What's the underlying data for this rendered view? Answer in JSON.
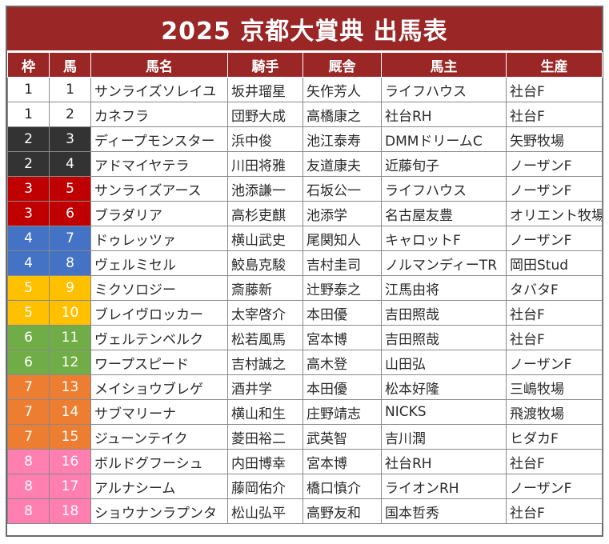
{
  "title": "2025 京都大賞典 出馬表",
  "columns": [
    "枠",
    "馬",
    "馬名",
    "騎手",
    "厩舎",
    "馬主",
    "生産"
  ],
  "frame_colors": {
    "1": {
      "bg": "#ffffff",
      "fg": "#222222"
    },
    "2": {
      "bg": "#333333",
      "fg": "#ffffff"
    },
    "3": {
      "bg": "#c00000",
      "fg": "#ffffff"
    },
    "4": {
      "bg": "#4472c4",
      "fg": "#ffffff"
    },
    "5": {
      "bg": "#ffc000",
      "fg": "#ffffff"
    },
    "6": {
      "bg": "#70ad47",
      "fg": "#ffffff"
    },
    "7": {
      "bg": "#ed7d31",
      "fg": "#ffffff"
    },
    "8": {
      "bg": "#ff7fb0",
      "fg": "#ffffff"
    }
  },
  "rows": [
    {
      "waku": "1",
      "uma": "1",
      "name": "サンライズソレイユ",
      "jockey": "坂井瑠星",
      "trainer": "矢作芳人",
      "owner": "ライフハウス",
      "breeder": "社台F"
    },
    {
      "waku": "1",
      "uma": "2",
      "name": "カネフラ",
      "jockey": "団野大成",
      "trainer": "高橋康之",
      "owner": "社台RH",
      "breeder": "社台F"
    },
    {
      "waku": "2",
      "uma": "3",
      "name": "ディープモンスター",
      "jockey": "浜中俊",
      "trainer": "池江泰寿",
      "owner": "DMMドリームC",
      "breeder": "矢野牧場"
    },
    {
      "waku": "2",
      "uma": "4",
      "name": "アドマイヤテラ",
      "jockey": "川田将雅",
      "trainer": "友道康夫",
      "owner": "近藤旬子",
      "breeder": "ノーザンF"
    },
    {
      "waku": "3",
      "uma": "5",
      "name": "サンライズアース",
      "jockey": "池添謙一",
      "trainer": "石坂公一",
      "owner": "ライフハウス",
      "breeder": "ノーザンF"
    },
    {
      "waku": "3",
      "uma": "6",
      "name": "ブラダリア",
      "jockey": "高杉吏麒",
      "trainer": "池添学",
      "owner": "名古屋友豊",
      "breeder": "オリエント牧場"
    },
    {
      "waku": "4",
      "uma": "7",
      "name": "ドゥレッツァ",
      "jockey": "横山武史",
      "trainer": "尾関知人",
      "owner": "キャロットF",
      "breeder": "ノーザンF"
    },
    {
      "waku": "4",
      "uma": "8",
      "name": "ヴェルミセル",
      "jockey": "鮫島克駿",
      "trainer": "吉村圭司",
      "owner": "ノルマンディーTR",
      "breeder": "岡田Stud"
    },
    {
      "waku": "5",
      "uma": "9",
      "name": "ミクソロジー",
      "jockey": "斎藤新",
      "trainer": "辻野泰之",
      "owner": "江馬由将",
      "breeder": "タバタF"
    },
    {
      "waku": "5",
      "uma": "10",
      "name": "ブレイヴロッカー",
      "jockey": "太宰啓介",
      "trainer": "本田優",
      "owner": "吉田照哉",
      "breeder": "社台F"
    },
    {
      "waku": "6",
      "uma": "11",
      "name": "ヴェルテンベルク",
      "jockey": "松若風馬",
      "trainer": "宮本博",
      "owner": "吉田照哉",
      "breeder": "社台F"
    },
    {
      "waku": "6",
      "uma": "12",
      "name": "ワープスピード",
      "jockey": "吉村誠之",
      "trainer": "高木登",
      "owner": "山田弘",
      "breeder": "ノーザンF"
    },
    {
      "waku": "7",
      "uma": "13",
      "name": "メイショウブレゲ",
      "jockey": "酒井学",
      "trainer": "本田優",
      "owner": "松本好隆",
      "breeder": "三嶋牧場"
    },
    {
      "waku": "7",
      "uma": "14",
      "name": "サブマリーナ",
      "jockey": "横山和生",
      "trainer": "庄野靖志",
      "owner": "NICKS",
      "breeder": "飛渡牧場"
    },
    {
      "waku": "7",
      "uma": "15",
      "name": "ジューンテイク",
      "jockey": "菱田裕二",
      "trainer": "武英智",
      "owner": "吉川潤",
      "breeder": "ヒダカF"
    },
    {
      "waku": "8",
      "uma": "16",
      "name": "ボルドグフーシュ",
      "jockey": "内田博幸",
      "trainer": "宮本博",
      "owner": "社台RH",
      "breeder": "社台F"
    },
    {
      "waku": "8",
      "uma": "17",
      "name": "アルナシーム",
      "jockey": "藤岡佑介",
      "trainer": "橋口慎介",
      "owner": "ライオンRH",
      "breeder": "ノーザンF"
    },
    {
      "waku": "8",
      "uma": "18",
      "name": "ショウナンラプンタ",
      "jockey": "松山弘平",
      "trainer": "高野友和",
      "owner": "国本哲秀",
      "breeder": "社台F"
    }
  ]
}
